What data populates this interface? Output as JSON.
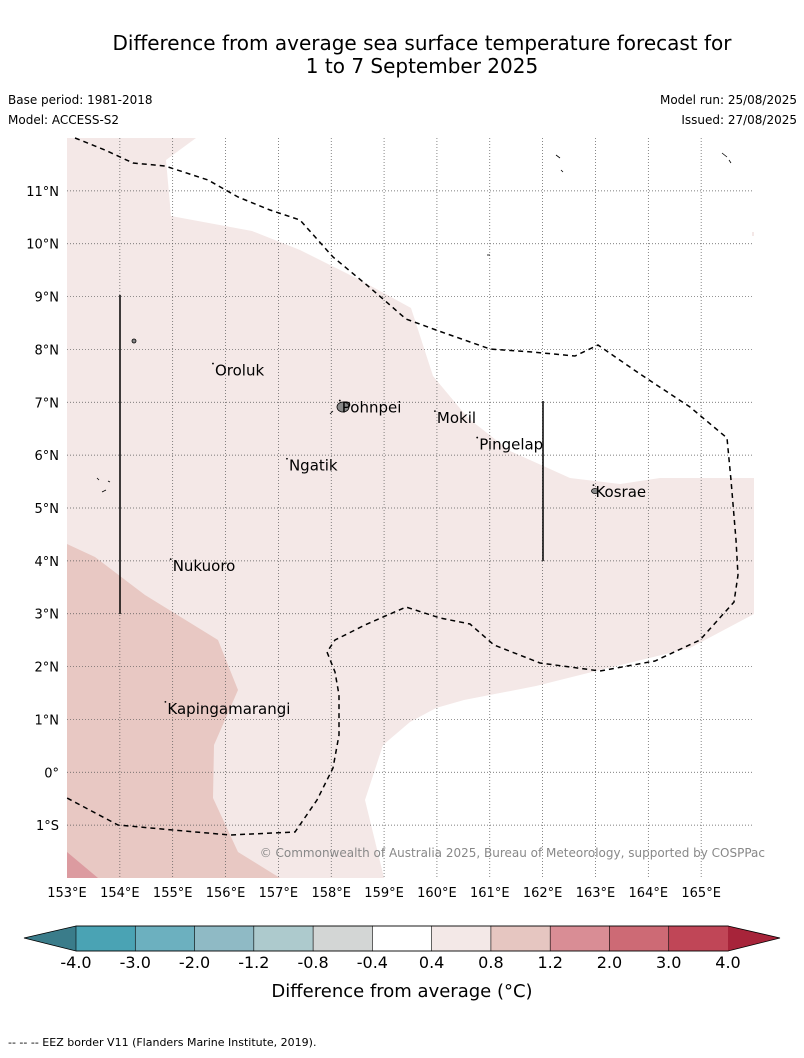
{
  "title_line1": "Difference from average sea surface temperature forecast for",
  "title_line2": "1 to 7 September 2025",
  "base_period": "Base period: 1981-2018",
  "model": "Model: ACCESS-S2",
  "model_run": "Model run: 25/08/2025",
  "issued": "Issued: 27/08/2025",
  "copyright": "© Commonwealth of Australia 2025, Bureau of Meteorology, supported by COSPPac",
  "footer_note": "--  --  -- EEZ border V11 (Flanders Marine Institute, 2019).",
  "map": {
    "lon_labels": [
      "153°E",
      "154°E",
      "155°E",
      "156°E",
      "157°E",
      "158°E",
      "159°E",
      "160°E",
      "161°E",
      "162°E",
      "163°E",
      "164°E",
      "165°E"
    ],
    "lat_labels": [
      "11°N",
      "10°N",
      "9°N",
      "8°N",
      "7°N",
      "6°N",
      "5°N",
      "4°N",
      "3°N",
      "2°N",
      "1°N",
      "0°",
      "1°S"
    ],
    "places": [
      {
        "name": "Oroluk",
        "lon": 155.8,
        "lat": 7.6
      },
      {
        "name": "Pohnpei",
        "lon": 158.2,
        "lat": 6.9
      },
      {
        "name": "Mokil",
        "lon": 160.0,
        "lat": 6.7
      },
      {
        "name": "Pingelap",
        "lon": 160.8,
        "lat": 6.2
      },
      {
        "name": "Ngatik",
        "lon": 157.2,
        "lat": 5.8
      },
      {
        "name": "Kosrae",
        "lon": 163.0,
        "lat": 5.3
      },
      {
        "name": "Nukuoro",
        "lon": 155.0,
        "lat": 3.9
      },
      {
        "name": "Kapingamarangi",
        "lon": 154.9,
        "lat": 1.2
      }
    ]
  },
  "colorbar": {
    "ticks": [
      "-4.0",
      "-3.0",
      "-2.0",
      "-1.2",
      "-0.8",
      "-0.4",
      "0.4",
      "0.8",
      "1.2",
      "2.0",
      "3.0",
      "4.0"
    ],
    "colors": [
      "#4aa3b4",
      "#6cb0bf",
      "#8fbac5",
      "#adcacd",
      "#d3d6d5",
      "#ffffff",
      "#f3e8e7",
      "#e6c6c1",
      "#d98d95",
      "#cd6a75",
      "#c04657"
    ],
    "low_extend_color": "#3a7c8a",
    "high_extend_color": "#a7243a",
    "label": "Difference from average (°C)"
  }
}
